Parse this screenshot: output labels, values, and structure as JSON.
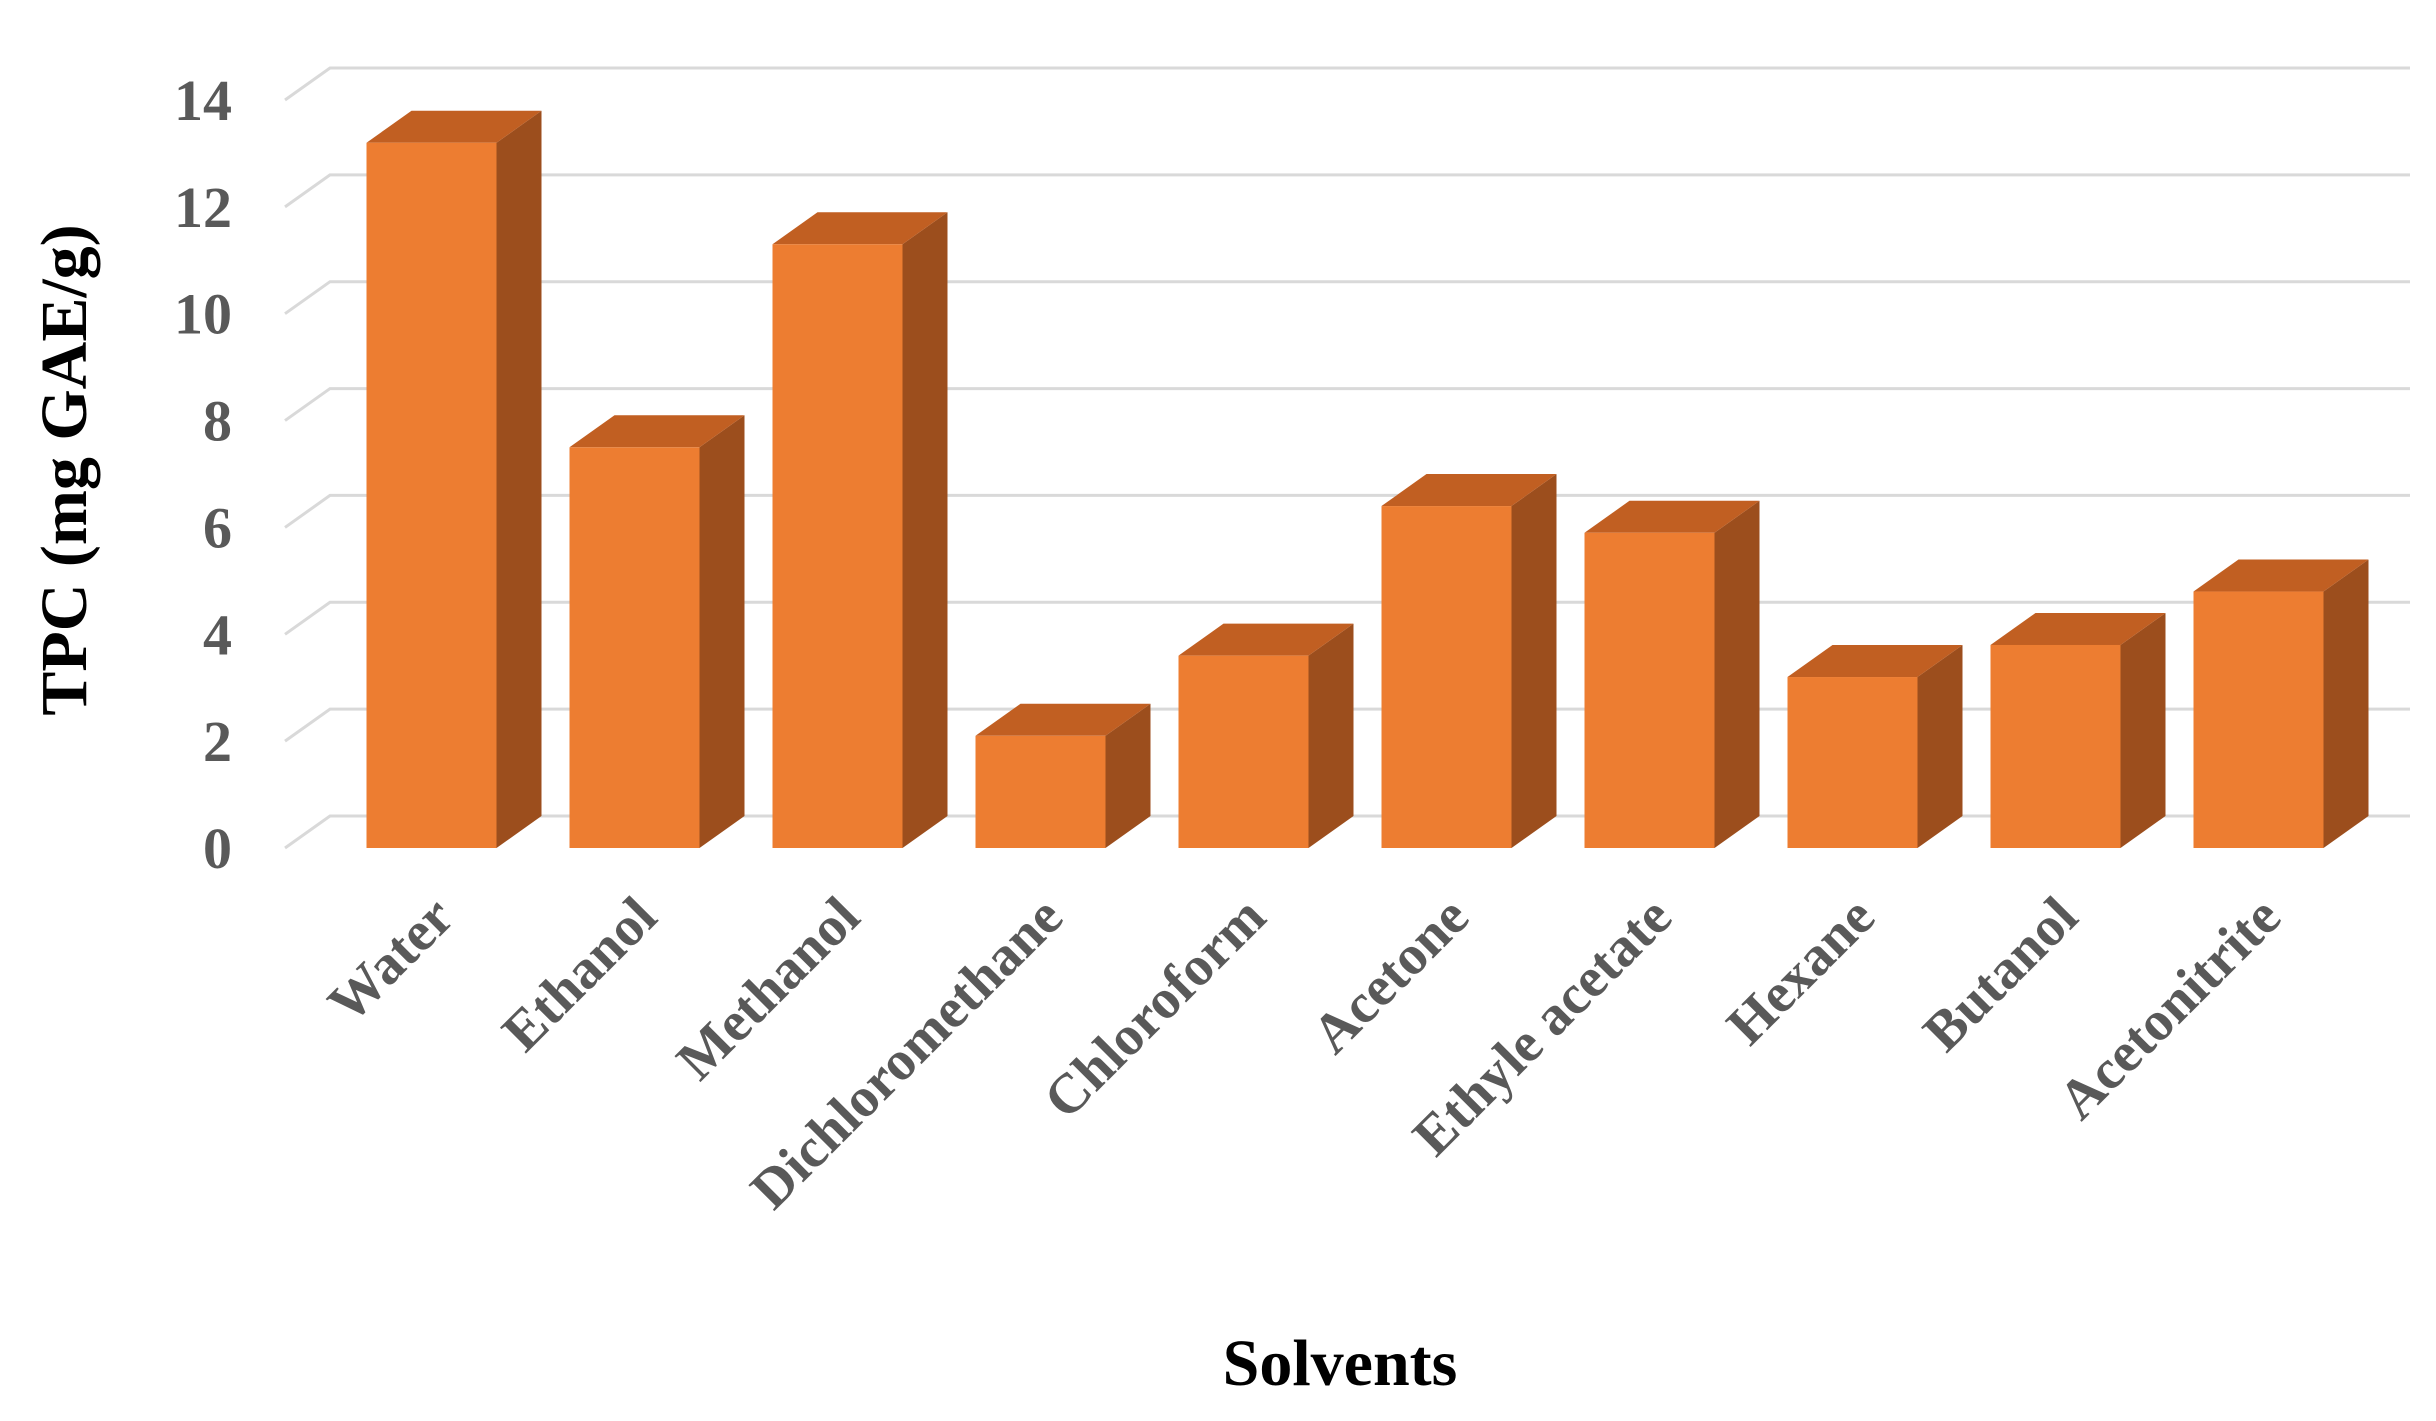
{
  "chart_data": {
    "type": "bar",
    "style": "3d-column",
    "categories": [
      "Water",
      "Ethanol",
      "Methanol",
      "Dichloromethane",
      "Chloroform",
      "Acetone",
      "Ethyle acetate",
      "Hexane",
      "Butanol",
      "Acetonitrite"
    ],
    "values": [
      13.2,
      7.5,
      11.3,
      2.1,
      3.6,
      6.4,
      5.9,
      3.2,
      3.8,
      4.8
    ],
    "xlabel": "Solvents",
    "ylabel": "TPC (mg GAE/g)",
    "ylim": [
      0,
      14
    ],
    "yticks": [
      0,
      2,
      4,
      6,
      8,
      10,
      12,
      14
    ],
    "grid": true,
    "legend": "none",
    "colors": {
      "front": "#ed7d31",
      "side": "#9c4e1d",
      "top": "#c15f22"
    }
  }
}
